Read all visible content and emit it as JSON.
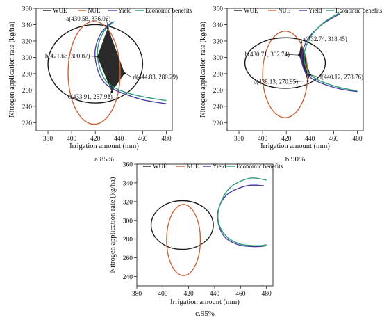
{
  "colors": {
    "WUE": "#1a1a1a",
    "NUE": "#c8643c",
    "Yield": "#4a3fa0",
    "Economic benefits": "#2e9e7a",
    "shade": "#2a2a2a"
  },
  "chart_data": [
    {
      "type": "line",
      "caption": "a.85%",
      "xlabel": "Irrigation amount (mm)",
      "ylabel": "Nitrogen application rate (kg/ha)",
      "xlim": [
        370,
        485
      ],
      "ylim": [
        210,
        360
      ],
      "xticks": [
        380,
        400,
        420,
        440,
        460,
        480
      ],
      "yticks": [
        220,
        240,
        260,
        280,
        300,
        320,
        340,
        360
      ],
      "legend": [
        "WUE",
        "NUE",
        "Yield",
        "Economic benefits"
      ],
      "legend_position": "top",
      "series": [
        {
          "name": "WUE",
          "shape": "ellipse",
          "center": [
            420,
            292
          ],
          "radii": [
            40,
            48
          ]
        },
        {
          "name": "NUE",
          "shape": "ellipse",
          "center": [
            419,
            281
          ],
          "radii": [
            22,
            63
          ]
        },
        {
          "name": "Yield",
          "shape": "arc",
          "points": [
            [
              434,
              343
            ],
            [
              425,
              330
            ],
            [
              420,
              310
            ],
            [
              421,
              290
            ],
            [
              426,
              272
            ],
            [
              434,
              262
            ],
            [
              445,
              255
            ],
            [
              460,
              248
            ],
            [
              480,
              243
            ]
          ]
        },
        {
          "name": "Economic benefits",
          "shape": "arc",
          "points": [
            [
              436,
              344
            ],
            [
              427,
              331
            ],
            [
              422,
              311
            ],
            [
              423,
              291
            ],
            [
              428,
              273
            ],
            [
              436,
              263
            ],
            [
              448,
              256
            ],
            [
              463,
              251
            ],
            [
              480,
              247
            ]
          ]
        }
      ],
      "shaded_region": [
        [
          433.9,
          257.9
        ],
        [
          444.8,
          280.3
        ],
        [
          430.6,
          336.1
        ],
        [
          421.7,
          300.9
        ]
      ],
      "annotations": [
        {
          "label": "a(430.58, 336.06)",
          "x": 430.58,
          "y": 336.06
        },
        {
          "label": "b(421.66, 300.87)",
          "x": 421.66,
          "y": 300.87
        },
        {
          "label": "c(433.91, 257.92)",
          "x": 433.91,
          "y": 257.92
        },
        {
          "label": "d(444.83, 280.29)",
          "x": 444.83,
          "y": 280.29
        }
      ]
    },
    {
      "type": "line",
      "caption": "b.90%",
      "xlabel": "Irrigation amount (mm)",
      "ylabel": "Nitrogen application rate (kg/ha)",
      "xlim": [
        370,
        485
      ],
      "ylim": [
        210,
        360
      ],
      "xticks": [
        380,
        400,
        420,
        440,
        460,
        480
      ],
      "yticks": [
        220,
        240,
        260,
        280,
        300,
        320,
        340,
        360
      ],
      "legend": [
        "WUE",
        "NUE",
        "Yield",
        "Economic benefits"
      ],
      "legend_position": "top",
      "series": [
        {
          "name": "WUE",
          "shape": "ellipse",
          "center": [
            419,
            293
          ],
          "radii": [
            34,
            31
          ]
        },
        {
          "name": "NUE",
          "shape": "ellipse",
          "center": [
            419,
            279
          ],
          "radii": [
            19,
            53
          ]
        },
        {
          "name": "Yield",
          "shape": "arc",
          "points": [
            [
              465,
              353
            ],
            [
              450,
              340
            ],
            [
              438,
              322
            ],
            [
              433,
              300
            ],
            [
              436,
              282
            ],
            [
              444,
              272
            ],
            [
              458,
              264
            ],
            [
              470,
              260
            ],
            [
              480,
              258
            ]
          ]
        },
        {
          "name": "Economic benefits",
          "shape": "arc",
          "points": [
            [
              467,
              356
            ],
            [
              452,
              343
            ],
            [
              440,
              324
            ],
            [
              435,
              302
            ],
            [
              438,
              283
            ],
            [
              446,
              273
            ],
            [
              460,
              265
            ],
            [
              472,
              261
            ],
            [
              480,
              259
            ]
          ]
        }
      ],
      "shaded_region": [
        [
          432.7,
          318.5
        ],
        [
          440.1,
          278.8
        ],
        [
          438.1,
          271.0
        ],
        [
          430.7,
          302.7
        ]
      ],
      "annotations": [
        {
          "label": "a(432.74, 318.45)",
          "x": 432.74,
          "y": 318.45
        },
        {
          "label": "b(430.71, 302.74)",
          "x": 430.71,
          "y": 302.74
        },
        {
          "label": "c(438.13, 270.95)",
          "x": 438.13,
          "y": 270.95
        },
        {
          "label": "d(440.12, 278.76)",
          "x": 440.12,
          "y": 278.76
        }
      ]
    },
    {
      "type": "line",
      "caption": "c.95%",
      "xlabel": "Irrigation amount (mm)",
      "ylabel": "Nitrogen application rate (kg/ha)",
      "xlim": [
        380,
        485
      ],
      "ylim": [
        230,
        360
      ],
      "xticks": [
        380,
        400,
        420,
        440,
        460,
        480
      ],
      "yticks": [
        240,
        260,
        280,
        300,
        320,
        340,
        360
      ],
      "legend": [
        "WUE",
        "NUE",
        "Yield",
        "Economic benefits"
      ],
      "legend_position": "top",
      "series": [
        {
          "name": "WUE",
          "shape": "ellipse",
          "center": [
            415,
            295
          ],
          "radii": [
            24,
            26
          ]
        },
        {
          "name": "NUE",
          "shape": "ellipse",
          "center": [
            416,
            279
          ],
          "radii": [
            13,
            38
          ]
        },
        {
          "name": "Yield",
          "shape": "arc",
          "points": [
            [
              478,
              337
            ],
            [
              465,
              337
            ],
            [
              450,
              328
            ],
            [
              443,
              312
            ],
            [
              443,
              296
            ],
            [
              448,
              282
            ],
            [
              458,
              274
            ],
            [
              468,
              272
            ],
            [
              475,
              272
            ],
            [
              480,
              273
            ]
          ]
        },
        {
          "name": "Economic benefits",
          "shape": "arc",
          "points": [
            [
              480,
              343
            ],
            [
              467,
              345
            ],
            [
              452,
              335
            ],
            [
              444,
              316
            ],
            [
              443,
              298
            ],
            [
              449,
              283
            ],
            [
              459,
              275
            ],
            [
              469,
              273
            ],
            [
              476,
              273
            ],
            [
              480,
              274
            ]
          ]
        }
      ],
      "annotations": []
    }
  ]
}
